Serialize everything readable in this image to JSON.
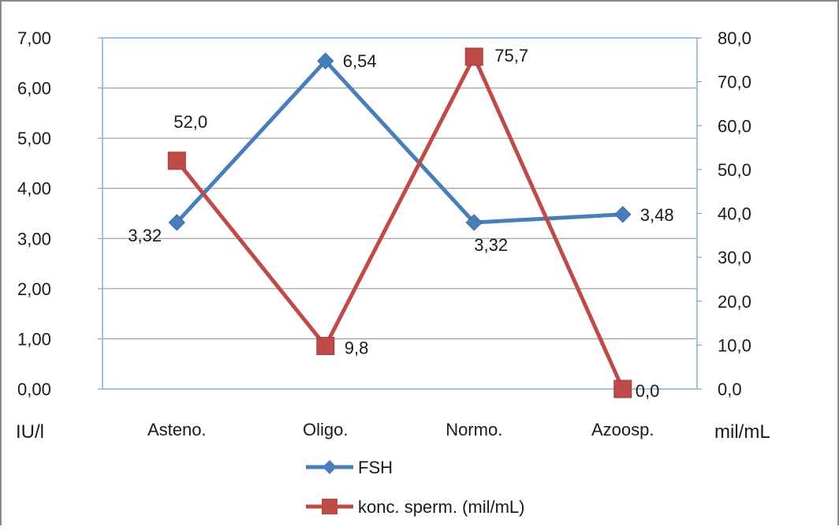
{
  "chart_data": {
    "type": "line",
    "categories": [
      "Asteno.",
      "Oligo.",
      "Normo.",
      "Azoosp."
    ],
    "left_axis": {
      "unit_label": "IU/l",
      "range": [
        0,
        7
      ],
      "ticks": [
        "0,00",
        "1,00",
        "2,00",
        "3,00",
        "4,00",
        "5,00",
        "6,00",
        "7,00"
      ]
    },
    "right_axis": {
      "unit_label": "mil/mL",
      "range": [
        0,
        80
      ],
      "ticks": [
        "0,0",
        "10,0",
        "20,0",
        "30,0",
        "40,0",
        "50,0",
        "60,0",
        "70,0",
        "80,0"
      ]
    },
    "series": [
      {
        "name": "FSH",
        "axis": "left",
        "color": "#4a7ebb",
        "marker": "diamond",
        "values": [
          3.32,
          6.54,
          3.32,
          3.48
        ],
        "labels": [
          "3,32",
          "6,54",
          "3,32",
          "3,48"
        ]
      },
      {
        "name": "konc. sperm. (mil/mL)",
        "axis": "right",
        "color": "#be4b48",
        "marker": "square",
        "values": [
          52.0,
          9.8,
          75.7,
          0.0
        ],
        "labels": [
          "52,0",
          "9,8",
          "75,7",
          "0,0"
        ]
      }
    ],
    "grid": true,
    "legend_position": "bottom"
  }
}
